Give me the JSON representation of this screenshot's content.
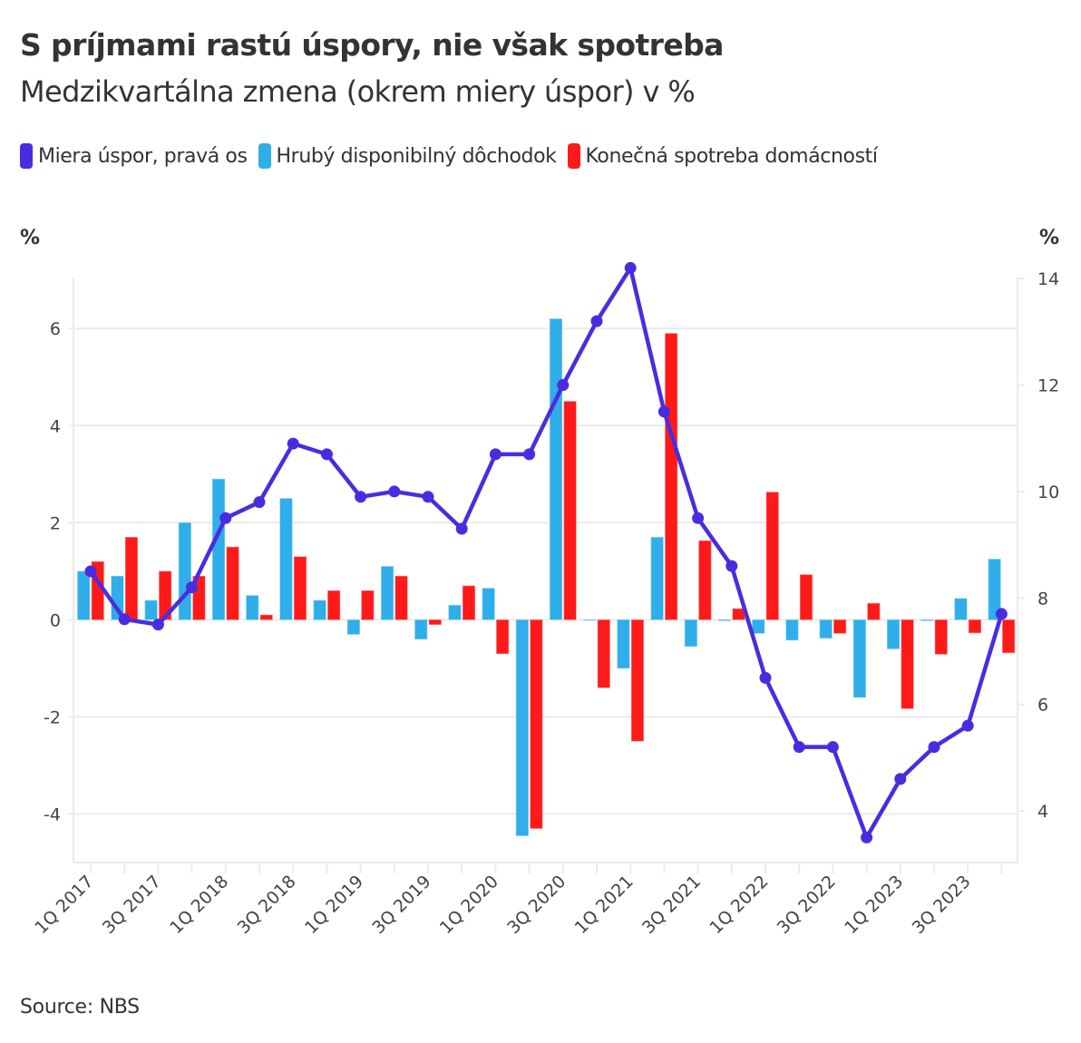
{
  "header": {
    "title": "S príjmami rastú úspory, nie však spotreba",
    "subtitle": "Medzikvartálna zmena (okrem miery úspor) v %"
  },
  "legend": [
    {
      "label": "Miera úspor, pravá os",
      "color": "#4A2CE0"
    },
    {
      "label": "Hrubý disponibilný dôchodok",
      "color": "#2FAEEA"
    },
    {
      "label": "Konečná spotreba domácností",
      "color": "#FF1A1A"
    }
  ],
  "axis_units": {
    "left": "%",
    "right": "%"
  },
  "footer": {
    "source": "Source: NBS"
  },
  "chart_data": {
    "type": "bar",
    "title": "S príjmami rastú úspory, nie však spotreba",
    "subtitle": "Medzikvartálna zmena (okrem miery úspor) v %",
    "xlabel": "",
    "ylabel": "%",
    "y2label": "%",
    "ylim": [
      -5.0,
      7.05
    ],
    "y2lim": [
      3.03,
      14.02
    ],
    "yticks": [
      -4,
      -2,
      0,
      2,
      4,
      6
    ],
    "y2ticks": [
      4,
      6,
      8,
      10,
      12,
      14
    ],
    "grid": true,
    "legend_position": "top-left",
    "categories": [
      "1Q 2017",
      "2Q 2017",
      "3Q 2017",
      "4Q 2017",
      "1Q 2018",
      "2Q 2018",
      "3Q 2018",
      "4Q 2018",
      "1Q 2019",
      "2Q 2019",
      "3Q 2019",
      "4Q 2019",
      "1Q 2020",
      "2Q 2020",
      "3Q 2020",
      "4Q 2020",
      "1Q 2021",
      "2Q 2021",
      "3Q 2021",
      "4Q 2021",
      "1Q 2022",
      "2Q 2022",
      "3Q 2022",
      "4Q 2022",
      "1Q 2023",
      "2Q 2023",
      "3Q 2023",
      "4Q 2023"
    ],
    "xtick_labels_shown": [
      "1Q 2017",
      "3Q 2017",
      "1Q 2018",
      "3Q 2018",
      "1Q 2019",
      "3Q 2019",
      "1Q 2020",
      "3Q 2020",
      "1Q 2021",
      "3Q 2021",
      "1Q 2022",
      "3Q 2022",
      "1Q 2023",
      "3Q 2023"
    ],
    "series": [
      {
        "name": "Hrubý disponibilný dôchodok",
        "type": "bar",
        "axis": "left",
        "color": "#2FAEEA",
        "values": [
          1.0,
          0.9,
          0.4,
          2.0,
          2.9,
          0.5,
          2.5,
          0.4,
          -0.3,
          1.1,
          -0.4,
          0.3,
          0.65,
          -4.45,
          6.2,
          0.0,
          -1.0,
          1.7,
          -0.55,
          -0.02,
          -0.28,
          -0.42,
          -0.38,
          -1.6,
          -0.6,
          -0.02,
          0.44,
          1.25
        ]
      },
      {
        "name": "Konečná spotreba domácností",
        "type": "bar",
        "axis": "left",
        "color": "#FF1A1A",
        "values": [
          1.2,
          1.7,
          1.0,
          0.9,
          1.5,
          0.1,
          1.3,
          0.6,
          0.6,
          0.9,
          -0.1,
          0.7,
          -0.7,
          -4.3,
          4.5,
          -1.4,
          -2.5,
          5.9,
          1.63,
          0.23,
          2.63,
          0.93,
          -0.28,
          0.34,
          -1.83,
          -0.71,
          -0.27,
          -0.68
        ]
      },
      {
        "name": "Miera úspor, pravá os",
        "type": "line",
        "axis": "right",
        "color": "#4A2CE0",
        "values": [
          8.5,
          7.6,
          7.5,
          8.2,
          9.5,
          9.8,
          10.9,
          10.7,
          9.9,
          10.0,
          9.9,
          9.3,
          10.7,
          10.7,
          12.0,
          13.2,
          14.2,
          11.5,
          9.5,
          8.6,
          6.5,
          5.2,
          5.2,
          3.5,
          4.6,
          5.2,
          5.6,
          7.7
        ]
      }
    ]
  }
}
